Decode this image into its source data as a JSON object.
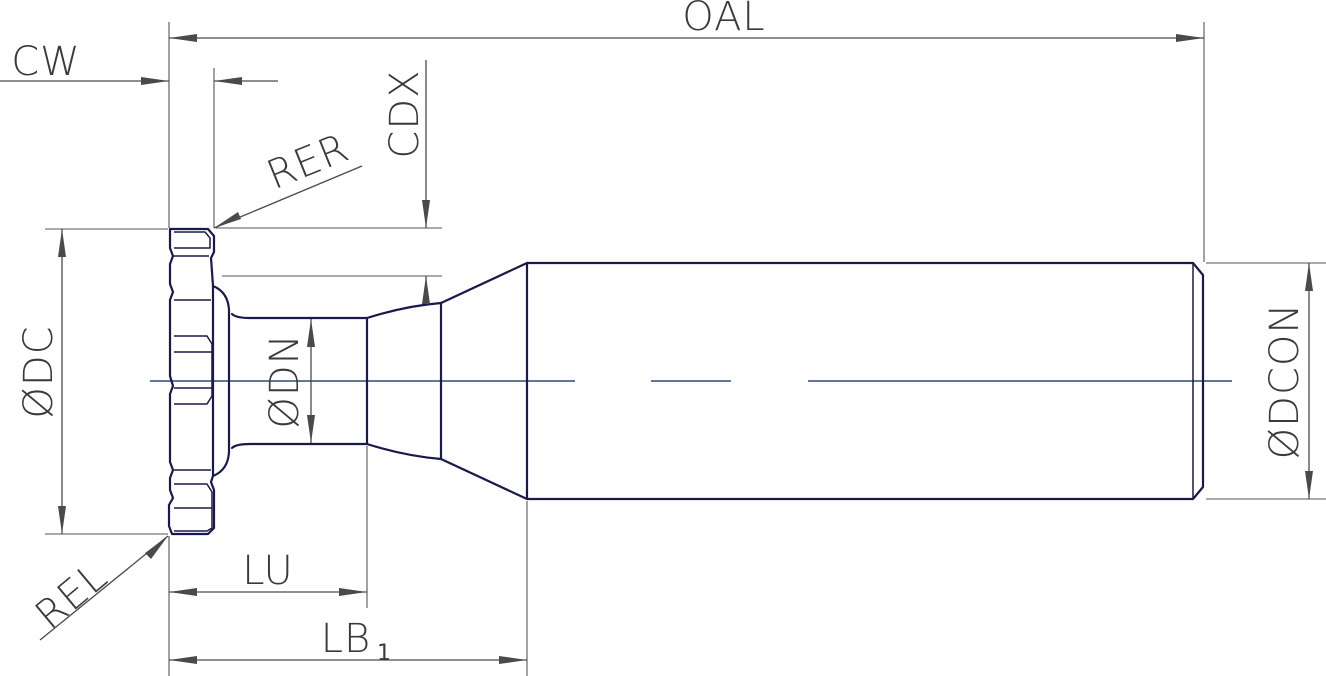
{
  "labels": {
    "oal": "OAL",
    "cw": "CW",
    "cdx": "CDX",
    "rer": "RER",
    "dc": "ØDC",
    "dn": "ØDN",
    "dcon": "ØDCON",
    "rel": "REL",
    "lu": "LU",
    "lb1_main": "LB",
    "lb1_sub": "1"
  },
  "colors": {
    "part_outline": "#1a1a4a",
    "dimension": "#4a4a4a",
    "centerline": "#2e4a7a"
  }
}
